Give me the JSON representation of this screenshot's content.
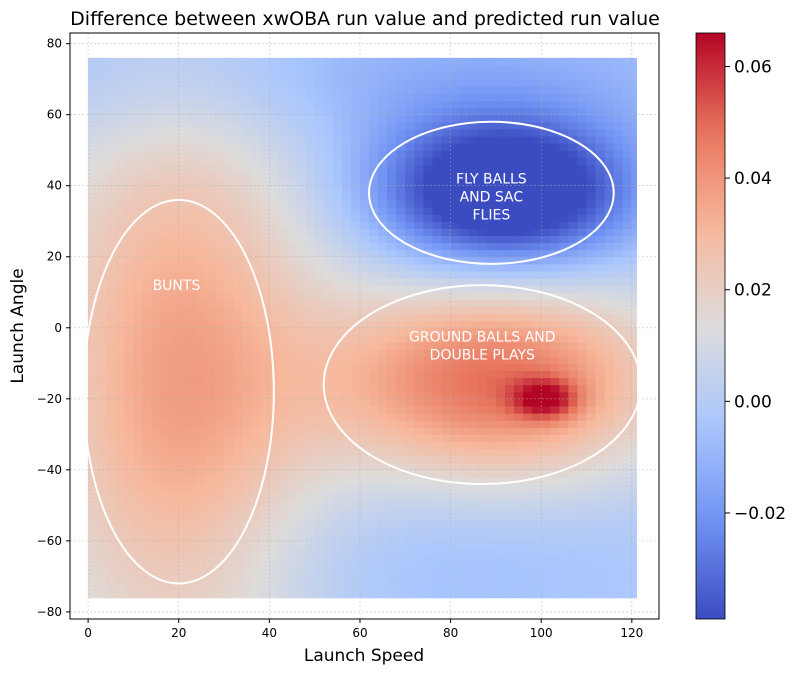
{
  "chart_data": {
    "type": "heatmap",
    "title": "Difference between xwOBA run value and predicted run value",
    "xlabel": "Launch Speed",
    "ylabel": "Launch Angle",
    "xlim": [
      -4,
      126
    ],
    "ylim": [
      -82,
      83
    ],
    "x_ticks": [
      0,
      20,
      40,
      60,
      80,
      100,
      120
    ],
    "y_ticks": [
      -80,
      -60,
      -40,
      -20,
      0,
      20,
      40,
      60,
      80
    ],
    "grid": true,
    "data_extent": {
      "x": [
        0,
        121
      ],
      "y": [
        -76,
        76
      ]
    },
    "colorbar": {
      "colormap": "coolwarm",
      "range": [
        -0.039,
        0.066
      ],
      "ticks": [
        -0.02,
        0.0,
        0.02,
        0.04,
        0.06
      ],
      "tick_labels": [
        "−0.02",
        "0.00",
        "0.02",
        "0.04",
        "0.06"
      ],
      "colors": [
        "#3b4cc0",
        "#7092f3",
        "#aac7fd",
        "#dddcdc",
        "#f7b89c",
        "#e7745b",
        "#b40426"
      ]
    },
    "field_components": [
      {
        "name": "bunt-region",
        "cx": 20,
        "cy": -15,
        "sx": 22,
        "sy": 60,
        "value": 0.036
      },
      {
        "name": "ground-balls-region",
        "cx": 90,
        "cy": -15,
        "sx": 26,
        "sy": 20,
        "value": 0.048
      },
      {
        "name": "ground-balls-hotspot",
        "cx": 101,
        "cy": -20,
        "sx": 5,
        "sy": 4,
        "value": 0.03
      },
      {
        "name": "fly-balls-region",
        "cx": 92,
        "cy": 38,
        "sx": 20,
        "sy": 15,
        "value": -0.06
      },
      {
        "name": "upper-band",
        "cx": 60,
        "cy": 72,
        "sx": 80,
        "sy": 16,
        "value": -0.012
      },
      {
        "name": "lower-band",
        "cx": 80,
        "cy": -65,
        "sx": 40,
        "sy": 18,
        "value": -0.008
      }
    ],
    "field_base_value": 0.001,
    "annotations": [
      {
        "lines": [
          "BUNTS"
        ],
        "x": 19.5,
        "y": 12,
        "ellipse": {
          "cx": 20,
          "cy": -18,
          "rx": 21,
          "ry": 54
        }
      },
      {
        "lines": [
          "FLY BALLS",
          "AND SAC",
          "FLIES"
        ],
        "x": 89,
        "y": 37,
        "ellipse": {
          "cx": 89,
          "cy": 38,
          "rx": 27,
          "ry": 20
        }
      },
      {
        "lines": [
          "GROUND BALLS AND",
          "DOUBLE PLAYS"
        ],
        "x": 87,
        "y": -5,
        "ellipse": {
          "cx": 87,
          "cy": -16,
          "rx": 35,
          "ry": 28
        }
      }
    ]
  }
}
